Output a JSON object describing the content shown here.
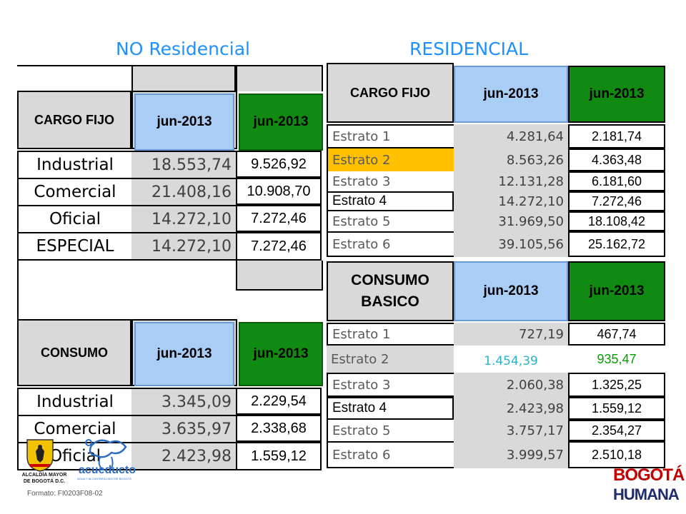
{
  "titles": {
    "left": "NO Residencial",
    "right": "RESIDENCIAL"
  },
  "left_table1": {
    "header": {
      "label": "CARGO FIJO",
      "col1": "jun-2013",
      "col2": "jun-2013"
    },
    "rows": [
      {
        "label": "Industrial",
        "v1": "18.553,74",
        "v2": "9.526,92"
      },
      {
        "label": "Comercial",
        "v1": "21.408,16",
        "v2": "10.908,70"
      },
      {
        "label": "Oficial",
        "v1": "14.272,10",
        "v2": "7.272,46"
      },
      {
        "label": "ESPECIAL",
        "v1": "14.272,10",
        "v2": "7.272,46"
      }
    ]
  },
  "left_table2": {
    "header": {
      "label": "CONSUMO",
      "col1": "jun-2013",
      "col2": "jun-2013"
    },
    "rows": [
      {
        "label": "Industrial",
        "v1": "3.345,09",
        "v2": "2.229,54"
      },
      {
        "label": "Comercial",
        "v1": "3.635,97",
        "v2": "2.338,68"
      },
      {
        "label": "Oficial",
        "v1": "2.423,98",
        "v2": "1.559,12"
      }
    ]
  },
  "right_table1": {
    "header": {
      "label": "CARGO FIJO",
      "col1": "jun-2013",
      "col2": "jun-2013"
    },
    "rows": [
      {
        "label": "Estrato 1",
        "v1": "4.281,64",
        "v2": "2.181,74"
      },
      {
        "label": "Estrato 2",
        "v1": "8.563,26",
        "v2": "4.363,48"
      },
      {
        "label": "Estrato 3",
        "v1": "12.131,28",
        "v2": "6.181,60"
      },
      {
        "label": "Estrato 4",
        "v1": "14.272,10",
        "v2": "7.272,46"
      },
      {
        "label": "Estrato 5",
        "v1": "31.969,50",
        "v2": "18.108,42"
      },
      {
        "label": "Estrato 6",
        "v1": "39.105,56",
        "v2": "25.162,72"
      }
    ]
  },
  "right_table2": {
    "header": {
      "label_line1": "CONSUMO",
      "label_line2": "BASICO",
      "col1": "jun-2013",
      "col2": "jun-2013"
    },
    "rows": [
      {
        "label": "Estrato 1",
        "v1": "727,19",
        "v2": "467,74"
      },
      {
        "label": "Estrato 2",
        "v1": "1.454,39",
        "v2": "935,47"
      },
      {
        "label": "Estrato 3",
        "v1": "2.060,38",
        "v2": "1.325,25"
      },
      {
        "label": "Estrato 4",
        "v1": "2.423,98",
        "v2": "1.559,12"
      },
      {
        "label": "Estrato 5",
        "v1": "3.757,17",
        "v2": "2.354,27"
      },
      {
        "label": "Estrato 6",
        "v1": "3.999,57",
        "v2": "2.510,18"
      }
    ]
  },
  "footer": {
    "alcaldia_line1": "ALCALDÍA MAYOR",
    "alcaldia_line2": "DE BOGOTÁ D.C.",
    "acueducto": "acueducto",
    "acueducto_sub": "AGUA Y ALCANTARILLADO DE BOGOTÁ",
    "formato": "Formato: FI0203F08-02",
    "bogota_top": "BOGOTÁ",
    "bogota_bottom": "HUMANA"
  },
  "colors": {
    "title_blue": "#1e90ff",
    "header_blue": "#a9cdf5",
    "header_green": "#118a11",
    "highlight_orange": "#ffc000",
    "teal_text": "#2ab3c8",
    "green_text": "#00a000"
  }
}
